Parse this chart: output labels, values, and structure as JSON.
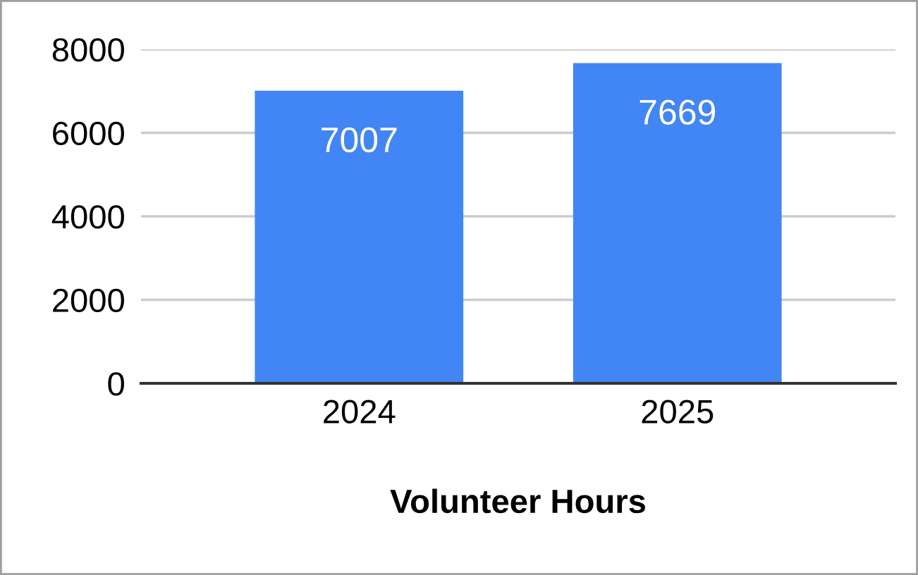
{
  "chart_data": {
    "type": "bar",
    "xlabel": "Volunteer Hours",
    "categories": [
      "2024",
      "2025"
    ],
    "values": [
      7007,
      7669
    ],
    "color": "#4285f4",
    "ylim": [
      0,
      8000
    ],
    "yticks": [
      0,
      2000,
      4000,
      6000,
      8000
    ],
    "grid": "y",
    "data_labels": true
  }
}
